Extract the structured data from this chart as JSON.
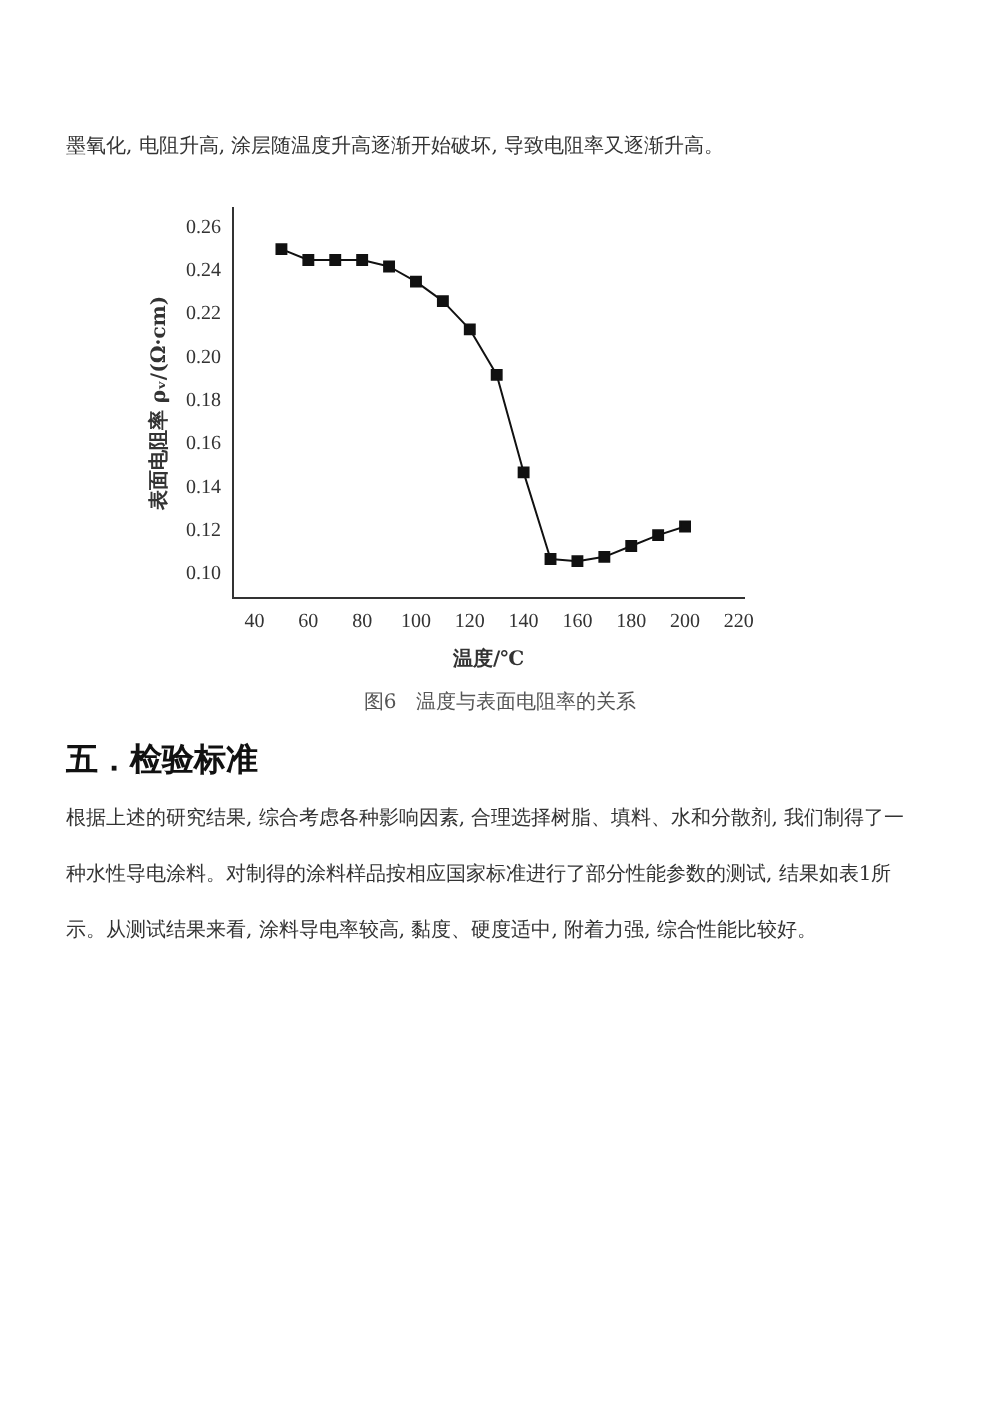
{
  "chart_data": {
    "type": "line",
    "title": "图6　温度与表面电阻率的关系",
    "xlabel": "温度/℃",
    "ylabel": "表面电阻率 ρᵥ/(Ω·cm)",
    "x": [
      50,
      60,
      70,
      80,
      90,
      100,
      110,
      120,
      130,
      140,
      150,
      160,
      170,
      180,
      190,
      200
    ],
    "series": [
      {
        "color": "#111111",
        "values": [
          0.25,
          0.245,
          0.245,
          0.245,
          0.242,
          0.235,
          0.226,
          0.213,
          0.192,
          0.147,
          0.107,
          0.106,
          0.108,
          0.113,
          0.118,
          0.122
        ]
      }
    ],
    "xlim": [
      32,
      222
    ],
    "xticks": [
      40,
      60,
      80,
      100,
      120,
      140,
      160,
      180,
      200,
      220
    ],
    "ylim": [
      0.089,
      0.269
    ],
    "yticks": [
      {
        "value": 0.1,
        "label": "0.10"
      },
      {
        "value": 0.12,
        "label": "0.12"
      },
      {
        "value": 0.14,
        "label": "0.14"
      },
      {
        "value": 0.16,
        "label": "0.16"
      },
      {
        "value": 0.18,
        "label": "0.18"
      },
      {
        "value": 0.2,
        "label": "0.20"
      },
      {
        "value": 0.22,
        "label": "0.22"
      },
      {
        "value": 0.24,
        "label": "0.24"
      },
      {
        "value": 0.26,
        "label": "0.26"
      }
    ],
    "marker": "square",
    "line_style": "solid",
    "grid": false,
    "legend": false,
    "annotations": [
      "墨氧化, 电阻升高, 涂层随温度升高逐渐开始破坏, 导致电阻率又逐渐升高。",
      "五．检验标准",
      "根据上述的研究结果, 综合考虑各种影响因素, 合理选择树脂、填料、水和分散剂, 我们制得了一种水性导电涂料。对制得的涂料样品按相应国家标准进行了部分性能参数的测试, 结果如表1所示。从测试结果来看, 涂料导电率较高, 黏度、硬度适中, 附着力强, 综合性能比较好。"
    ]
  }
}
